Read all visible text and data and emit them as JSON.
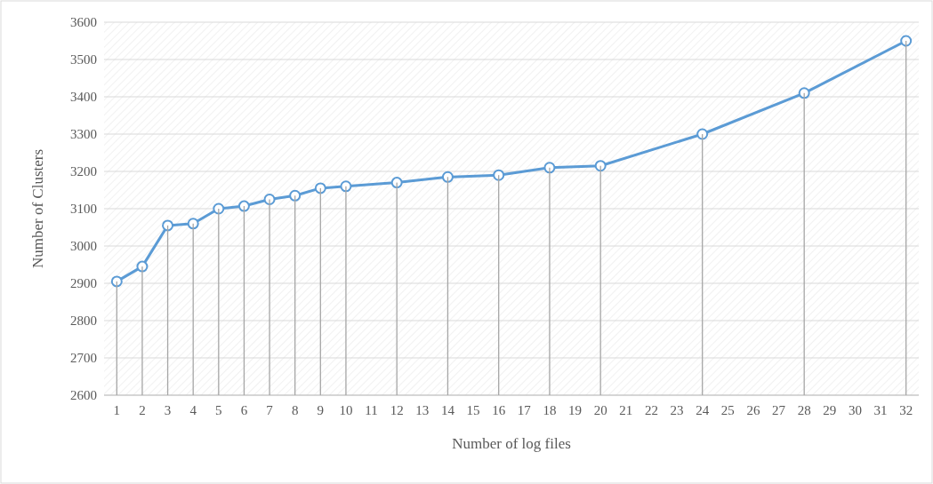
{
  "chart_data": {
    "type": "line",
    "xlabel": "Number of log files",
    "ylabel": "Number of Clusters",
    "x": [
      1,
      2,
      3,
      4,
      5,
      6,
      7,
      8,
      9,
      10,
      12,
      14,
      16,
      18,
      20,
      24,
      28,
      32
    ],
    "series": [
      {
        "color": "#5b9bd5",
        "marker": "circle",
        "values": [
          2905,
          2945,
          3055,
          3060,
          3100,
          3107,
          3125,
          3135,
          3155,
          3160,
          3170,
          3185,
          3190,
          3210,
          3215,
          3300,
          3410,
          3550
        ]
      },
      {
        "type": "bar",
        "color": "#a6a6a6",
        "values": [
          2905,
          2945,
          3055,
          3060,
          3100,
          3107,
          3125,
          3135,
          3155,
          3160,
          3170,
          3185,
          3190,
          3210,
          3215,
          3300,
          3410,
          3550
        ]
      }
    ],
    "xlim": [
      0.5,
      32.5
    ],
    "xticks": [
      1,
      2,
      3,
      4,
      5,
      6,
      7,
      8,
      9,
      10,
      11,
      12,
      13,
      14,
      15,
      16,
      17,
      18,
      19,
      20,
      21,
      22,
      23,
      24,
      25,
      26,
      27,
      28,
      29,
      30,
      31,
      32
    ],
    "ylim": [
      2600,
      3600
    ],
    "yticks": [
      2600,
      2700,
      2800,
      2900,
      3000,
      3100,
      3200,
      3300,
      3400,
      3500,
      3600
    ],
    "grid": "y",
    "line_style": "solid"
  }
}
